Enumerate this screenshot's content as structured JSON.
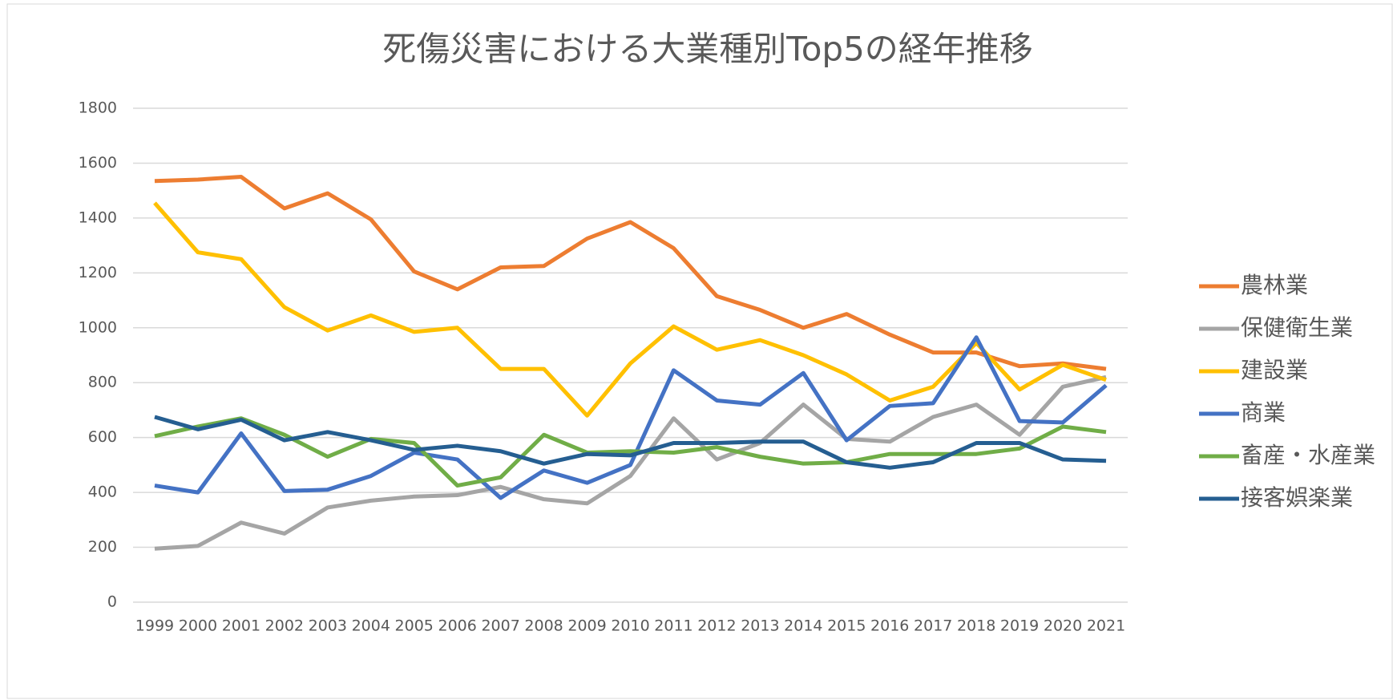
{
  "chart_data": {
    "type": "line",
    "title": "死傷災害における大業種別Top5の経年推移",
    "categories": [
      "1999",
      "2000",
      "2001",
      "2002",
      "2003",
      "2004",
      "2005",
      "2006",
      "2007",
      "2008",
      "2009",
      "2010",
      "2011",
      "2012",
      "2013",
      "2014",
      "2015",
      "2016",
      "2017",
      "2018",
      "2019",
      "2020",
      "2021"
    ],
    "series": [
      {
        "name": "農林業",
        "color": "#ed7d31",
        "values": [
          1535,
          1540,
          1550,
          1435,
          1490,
          1395,
          1205,
          1140,
          1220,
          1225,
          1325,
          1385,
          1290,
          1115,
          1065,
          1000,
          1050,
          975,
          910,
          910,
          860,
          870,
          850
        ]
      },
      {
        "name": "保健衛生業",
        "color": "#a5a5a5",
        "values": [
          195,
          205,
          290,
          250,
          345,
          370,
          385,
          390,
          420,
          375,
          360,
          460,
          670,
          520,
          580,
          720,
          595,
          585,
          675,
          720,
          610,
          785,
          820
        ]
      },
      {
        "name": "建設業",
        "color": "#ffc000",
        "values": [
          1455,
          1275,
          1250,
          1075,
          990,
          1045,
          985,
          1000,
          850,
          850,
          680,
          870,
          1005,
          920,
          955,
          900,
          830,
          735,
          785,
          945,
          775,
          865,
          810
        ]
      },
      {
        "name": "商業",
        "color": "#4472c4",
        "values": [
          425,
          400,
          615,
          405,
          410,
          460,
          545,
          520,
          380,
          480,
          435,
          500,
          845,
          735,
          720,
          835,
          590,
          715,
          725,
          965,
          660,
          655,
          790
        ]
      },
      {
        "name": "畜産・水産業",
        "color": "#70ad47",
        "values": [
          605,
          640,
          670,
          610,
          530,
          595,
          580,
          425,
          455,
          610,
          545,
          550,
          545,
          565,
          530,
          505,
          510,
          540,
          540,
          540,
          560,
          640,
          620
        ]
      },
      {
        "name": "接客娯楽業",
        "color": "#255e91",
        "values": [
          675,
          630,
          665,
          590,
          620,
          590,
          555,
          570,
          550,
          505,
          540,
          535,
          580,
          580,
          585,
          585,
          510,
          490,
          510,
          580,
          580,
          520,
          515
        ]
      }
    ],
    "ylim": [
      0,
      1800
    ],
    "yticks": [
      0,
      200,
      400,
      600,
      800,
      1000,
      1200,
      1400,
      1600,
      1800
    ],
    "grid": true,
    "legend": "right"
  }
}
